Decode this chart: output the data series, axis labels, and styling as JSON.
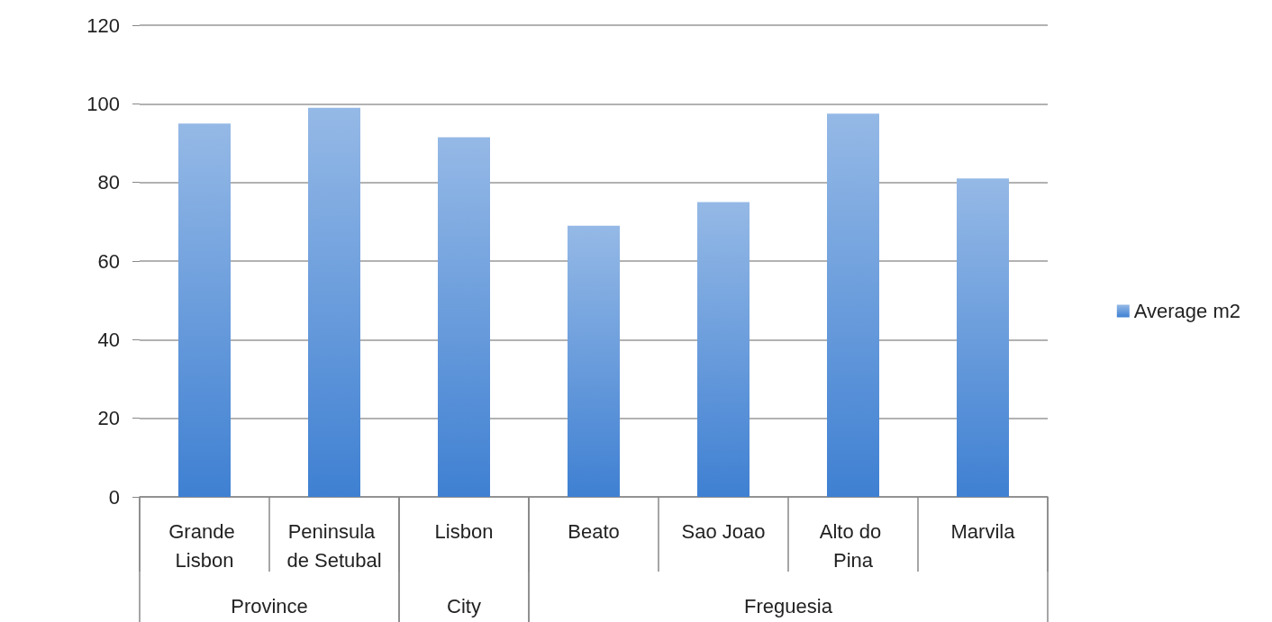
{
  "chart_data": {
    "type": "bar",
    "categories": [
      "Grande Lisbon",
      "Peninsula de Setubal",
      "Lisbon",
      "Beato",
      "Sao Joao",
      "Alto do Pina",
      "Marvila"
    ],
    "series": [
      {
        "name": "Average m2",
        "color": "#3f80d2",
        "values": [
          95,
          99,
          91.5,
          69,
          75,
          97.5,
          81
        ]
      }
    ],
    "ylim": [
      0,
      120
    ],
    "yticks": [
      0,
      20,
      40,
      60,
      80,
      100,
      120
    ],
    "grid": "y",
    "legend": "right",
    "annotations": [
      "Province",
      "City",
      "Freguesia"
    ]
  }
}
